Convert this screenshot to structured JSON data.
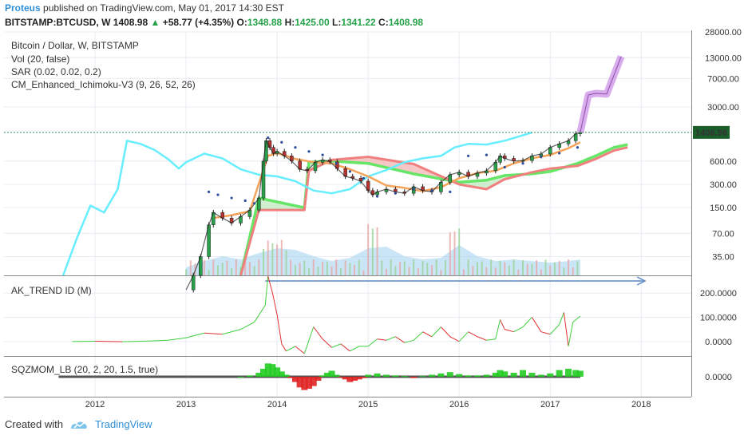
{
  "header": {
    "author": "Proteus",
    "published_text": "published on TradingView.com, May 01, 2017 14:30 EST",
    "symbol": "BITSTAMP:BTCUSD, W",
    "last": "1408.98",
    "arrow": "▲",
    "change": "+58.77 (+4.35%)",
    "o_label": "O:",
    "o": "1348.88",
    "h_label": "H:",
    "h": "1425.00",
    "l_label": "L:",
    "l": "1341.22",
    "c_label": "C:",
    "c": "1408.98"
  },
  "footer": {
    "created_with": "Created with",
    "brand": "TradingView"
  },
  "colors": {
    "grid": "#e8ecf2",
    "axis": "#555555",
    "up": "#27a24a",
    "down": "#b5322f",
    "senkou_a": "#66e666",
    "senkou_b": "#f08080",
    "cloud_red": "#f3b4b4",
    "cloud_grey": "#cfcfcf",
    "base": "#f5a35a",
    "lagging": "#66eeff",
    "sar": "#2b4c9a",
    "volume": "#9fd2ef",
    "projection": "#c98ae6",
    "trend_up": "#3ecf3e",
    "trend_down": "#e03030",
    "sqz_up": "#22cc22",
    "sqz_down": "#e02222",
    "price_line": "#2e8b57",
    "arrow": "#5a87c8"
  },
  "chart_data": [
    {
      "pane": "main",
      "type": "line",
      "title": "Bitcoin / Dollar, W, BITSTAMP",
      "legend": [
        "Vol (20, false)",
        "SAR (0.02, 0.02, 0.2)",
        "CM_Enhanced_Ichimoku-V3 (9, 26, 52, 26)"
      ],
      "scale": "log",
      "ylim": [
        20,
        28000
      ],
      "y_ticks": [
        "28000.00",
        "13000.00",
        "7000.00",
        "3000.00",
        "600.00",
        "300.00",
        "150.00",
        "70.00",
        "35.00"
      ],
      "y_tick_values": [
        28000,
        13000,
        7000,
        3000,
        600,
        300,
        150,
        70,
        35
      ],
      "last_price_label": "1408.98",
      "last_price": 1408.98,
      "x_ticks": [
        "2012",
        "2013",
        "2014",
        "2015",
        "2016",
        "2017",
        "2018"
      ],
      "x_tick_values": [
        2012,
        2013,
        2014,
        2015,
        2016,
        2017,
        2018
      ],
      "xlim": [
        2011.0,
        2018.55
      ],
      "series": [
        {
          "name": "close",
          "x": [
            2013.0,
            2013.08,
            2013.16,
            2013.25,
            2013.3,
            2013.4,
            2013.5,
            2013.6,
            2013.7,
            2013.8,
            2013.85,
            2013.88,
            2013.92,
            2013.96,
            2014.0,
            2014.08,
            2014.16,
            2014.25,
            2014.33,
            2014.42,
            2014.5,
            2014.58,
            2014.66,
            2014.75,
            2014.83,
            2014.92,
            2015.0,
            2015.05,
            2015.1,
            2015.2,
            2015.3,
            2015.4,
            2015.5,
            2015.6,
            2015.7,
            2015.8,
            2015.9,
            2016.0,
            2016.1,
            2016.2,
            2016.3,
            2016.4,
            2016.45,
            2016.5,
            2016.6,
            2016.7,
            2016.8,
            2016.9,
            2017.0,
            2017.1,
            2017.2,
            2017.28,
            2017.33
          ],
          "y": [
            13,
            20,
            35,
            90,
            130,
            110,
            95,
            115,
            140,
            200,
            600,
            1100,
            900,
            750,
            800,
            700,
            600,
            470,
            450,
            580,
            620,
            590,
            480,
            380,
            360,
            330,
            250,
            220,
            240,
            260,
            240,
            230,
            280,
            250,
            240,
            320,
            400,
            430,
            380,
            420,
            450,
            580,
            700,
            650,
            600,
            610,
            700,
            740,
            900,
            1000,
            1100,
            1350,
            1408.98
          ]
        },
        {
          "name": "base",
          "x": [
            2013.3,
            2013.5,
            2013.7,
            2013.9,
            2014.0,
            2014.2,
            2014.4,
            2014.6,
            2014.8,
            2015.0,
            2015.2,
            2015.4,
            2015.6,
            2015.8,
            2016.0,
            2016.2,
            2016.4,
            2016.6,
            2016.8,
            2017.0,
            2017.2,
            2017.33
          ],
          "y": [
            110,
            120,
            135,
            700,
            760,
            640,
            580,
            560,
            470,
            380,
            290,
            270,
            245,
            275,
            360,
            420,
            450,
            560,
            650,
            720,
            880,
            1050
          ]
        },
        {
          "name": "lagging",
          "x": [
            2011.65,
            2011.8,
            2011.95,
            2012.1,
            2012.25,
            2012.35,
            2012.5,
            2012.65,
            2012.8,
            2012.92,
            2013.0,
            2013.2,
            2013.4,
            2013.6,
            2013.8,
            2014.0,
            2014.2,
            2014.4,
            2014.6,
            2014.8,
            2015.0,
            2015.2,
            2015.4,
            2015.6,
            2015.8,
            2015.95,
            2016.1,
            2016.3,
            2016.5,
            2016.8
          ],
          "y": [
            20,
            60,
            160,
            130,
            260,
            1100,
            1000,
            840,
            640,
            480,
            580,
            750,
            650,
            470,
            400,
            380,
            330,
            250,
            230,
            260,
            380,
            460,
            580,
            650,
            700,
            900,
            1000,
            980,
            1100,
            1400
          ]
        },
        {
          "name": "senkou_a",
          "x": [
            2013.6,
            2013.8,
            2014.3,
            2014.35,
            2014.6,
            2015.0,
            2015.5,
            2016.0,
            2016.3,
            2016.5,
            2016.8,
            2017.0,
            2017.3,
            2017.5,
            2017.7,
            2017.85
          ],
          "y": [
            20,
            200,
            150,
            580,
            600,
            560,
            410,
            320,
            340,
            390,
            410,
            440,
            560,
            700,
            900,
            980
          ]
        },
        {
          "name": "senkou_b",
          "x": [
            2013.6,
            2013.8,
            2014.3,
            2014.35,
            2014.6,
            2015.0,
            2015.5,
            2016.0,
            2016.3,
            2016.5,
            2016.8,
            2017.0,
            2017.3,
            2017.5,
            2017.7,
            2017.85
          ],
          "y": [
            20,
            140,
            140,
            450,
            620,
            680,
            550,
            300,
            260,
            350,
            430,
            480,
            520,
            640,
            820,
            900
          ]
        },
        {
          "name": "sar",
          "x": [
            2013.25,
            2013.35,
            2013.5,
            2013.65,
            2013.75,
            2013.9,
            2014.05,
            2014.2,
            2014.35,
            2014.5,
            2014.65,
            2014.8,
            2014.95,
            2015.1,
            2015.3,
            2015.5,
            2015.7,
            2015.9,
            2016.1,
            2016.3,
            2016.5,
            2016.7,
            2016.9,
            2017.1,
            2017.3
          ],
          "y": [
            240,
            220,
            200,
            185,
            170,
            1200,
            1050,
            900,
            800,
            720,
            560,
            440,
            360,
            210,
            230,
            260,
            250,
            240,
            700,
            720,
            500,
            560,
            680,
            760,
            900
          ]
        },
        {
          "name": "volume",
          "x": [
            2013.0,
            2013.2,
            2013.4,
            2013.6,
            2013.8,
            2014.0,
            2014.2,
            2014.4,
            2014.6,
            2014.8,
            2015.0,
            2015.2,
            2015.4,
            2015.6,
            2015.8,
            2016.0,
            2016.2,
            2016.4,
            2016.6,
            2016.8,
            2017.0,
            2017.2,
            2017.33
          ],
          "y": [
            0.25,
            0.45,
            0.6,
            0.5,
            0.7,
            0.85,
            0.8,
            0.6,
            0.45,
            0.55,
            0.85,
            0.9,
            0.6,
            0.5,
            0.55,
            0.95,
            0.6,
            0.45,
            0.5,
            0.45,
            0.4,
            0.45,
            0.5
          ]
        },
        {
          "name": "projection",
          "x": [
            2017.33,
            2017.42,
            2017.5,
            2017.62,
            2017.78
          ],
          "y": [
            1408.98,
            4300,
            4500,
            4400,
            13500
          ]
        }
      ]
    },
    {
      "pane": "trend",
      "type": "line",
      "title": "AK_TREND ID (M)",
      "y_ticks": [
        "200.0000",
        "100.0000",
        "0.0000"
      ],
      "y_tick_values": [
        200,
        100,
        0
      ],
      "ylim": [
        -60,
        270
      ],
      "xlim": [
        2011.0,
        2018.55
      ],
      "series": [
        {
          "name": "trend",
          "x": [
            2011.75,
            2012.0,
            2012.3,
            2012.6,
            2012.8,
            2013.0,
            2013.2,
            2013.4,
            2013.6,
            2013.75,
            2013.87,
            2013.9,
            2013.95,
            2014.0,
            2014.05,
            2014.1,
            2014.2,
            2014.3,
            2014.4,
            2014.5,
            2014.6,
            2014.7,
            2014.8,
            2014.9,
            2015.0,
            2015.1,
            2015.2,
            2015.3,
            2015.4,
            2015.5,
            2015.6,
            2015.7,
            2015.8,
            2015.9,
            2016.0,
            2016.1,
            2016.2,
            2016.3,
            2016.4,
            2016.45,
            2016.5,
            2016.6,
            2016.7,
            2016.8,
            2016.9,
            2017.0,
            2017.1,
            2017.15,
            2017.2,
            2017.25,
            2017.33
          ],
          "y": [
            0,
            1,
            -1,
            2,
            5,
            15,
            35,
            30,
            50,
            80,
            150,
            270,
            200,
            110,
            -10,
            -40,
            -20,
            -50,
            60,
            10,
            -25,
            -10,
            -40,
            -20,
            -20,
            10,
            5,
            20,
            -5,
            5,
            40,
            20,
            60,
            20,
            0,
            40,
            20,
            5,
            10,
            90,
            50,
            40,
            60,
            100,
            40,
            30,
            70,
            120,
            -20,
            80,
            105
          ]
        }
      ]
    },
    {
      "pane": "squeeze",
      "type": "bar",
      "title": "SQZMOM_LB (20, 2, 20, 1.5, true)",
      "y_ticks": [
        "0.0000"
      ],
      "y_tick_values": [
        0
      ],
      "ylim": [
        -30,
        30
      ],
      "xlim": [
        2011.0,
        2018.55
      ],
      "series": [
        {
          "name": "momentum",
          "x": [
            2013.6,
            2013.7,
            2013.8,
            2013.85,
            2013.9,
            2013.95,
            2014.0,
            2014.05,
            2014.1,
            2014.15,
            2014.2,
            2014.25,
            2014.3,
            2014.35,
            2014.4,
            2014.45,
            2014.5,
            2014.55,
            2014.6,
            2014.65,
            2014.7,
            2014.75,
            2014.8,
            2014.85,
            2014.9,
            2014.95,
            2015.0,
            2015.1,
            2015.2,
            2015.3,
            2015.4,
            2015.5,
            2015.6,
            2015.7,
            2015.8,
            2015.9,
            2016.0,
            2016.1,
            2016.2,
            2016.3,
            2016.4,
            2016.45,
            2016.5,
            2016.6,
            2016.7,
            2016.8,
            2016.9,
            2017.0,
            2017.1,
            2017.2,
            2017.28,
            2017.33
          ],
          "y": [
            0,
            2,
            6,
            12,
            20,
            19,
            14,
            8,
            3,
            -2,
            -8,
            -16,
            -20,
            -18,
            -14,
            -6,
            2,
            6,
            9,
            3,
            -1,
            -4,
            -8,
            -6,
            -4,
            -2,
            3,
            5,
            3,
            2,
            1,
            -2,
            1,
            3,
            5,
            7,
            4,
            2,
            2,
            3,
            6,
            10,
            8,
            6,
            10,
            6,
            3,
            5,
            10,
            12,
            10,
            9
          ]
        }
      ]
    }
  ]
}
